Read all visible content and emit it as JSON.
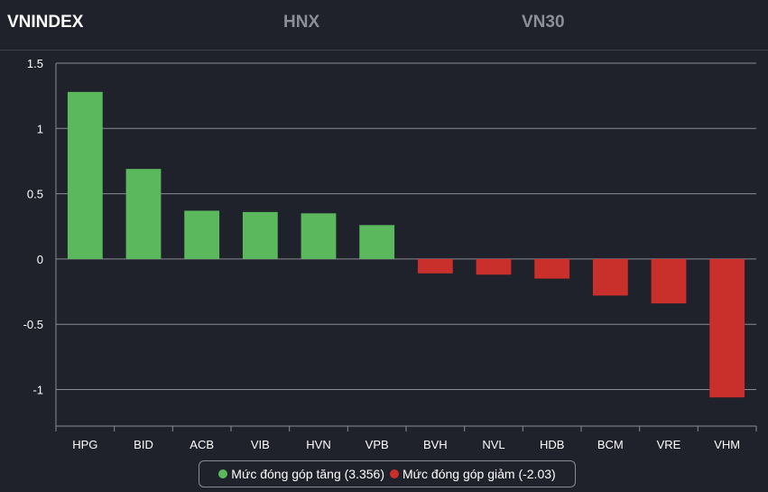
{
  "tabs": [
    {
      "label": "VNINDEX",
      "active": true
    },
    {
      "label": "HNX",
      "active": false
    },
    {
      "label": "VN30",
      "active": false
    }
  ],
  "colors": {
    "positive": "#5cb85c",
    "negative": "#c9302c",
    "background": "#1f212b",
    "grid": "#8a8c94"
  },
  "chart_data": {
    "type": "bar",
    "categories": [
      "HPG",
      "BID",
      "ACB",
      "VIB",
      "HVN",
      "VPB",
      "BVH",
      "NVL",
      "HDB",
      "BCM",
      "VRE",
      "VHM"
    ],
    "values": [
      1.28,
      0.69,
      0.37,
      0.36,
      0.35,
      0.26,
      -0.11,
      -0.12,
      -0.15,
      -0.28,
      -0.34,
      -1.06
    ],
    "ylim": [
      -1.28,
      1.5
    ],
    "yticks": [
      1.5,
      1,
      0.5,
      0,
      -0.5,
      -1
    ],
    "ytick_labels": [
      "1.5",
      "1",
      "0.5",
      "0",
      "-0.5",
      "-1"
    ],
    "grid": true,
    "legend_position": "bottom",
    "series": [
      {
        "name": "Mức đóng góp tăng (3.356)",
        "color": "#5cb85c"
      },
      {
        "name": "Mức đóng góp giảm (-2.03)",
        "color": "#c9302c"
      }
    ]
  }
}
